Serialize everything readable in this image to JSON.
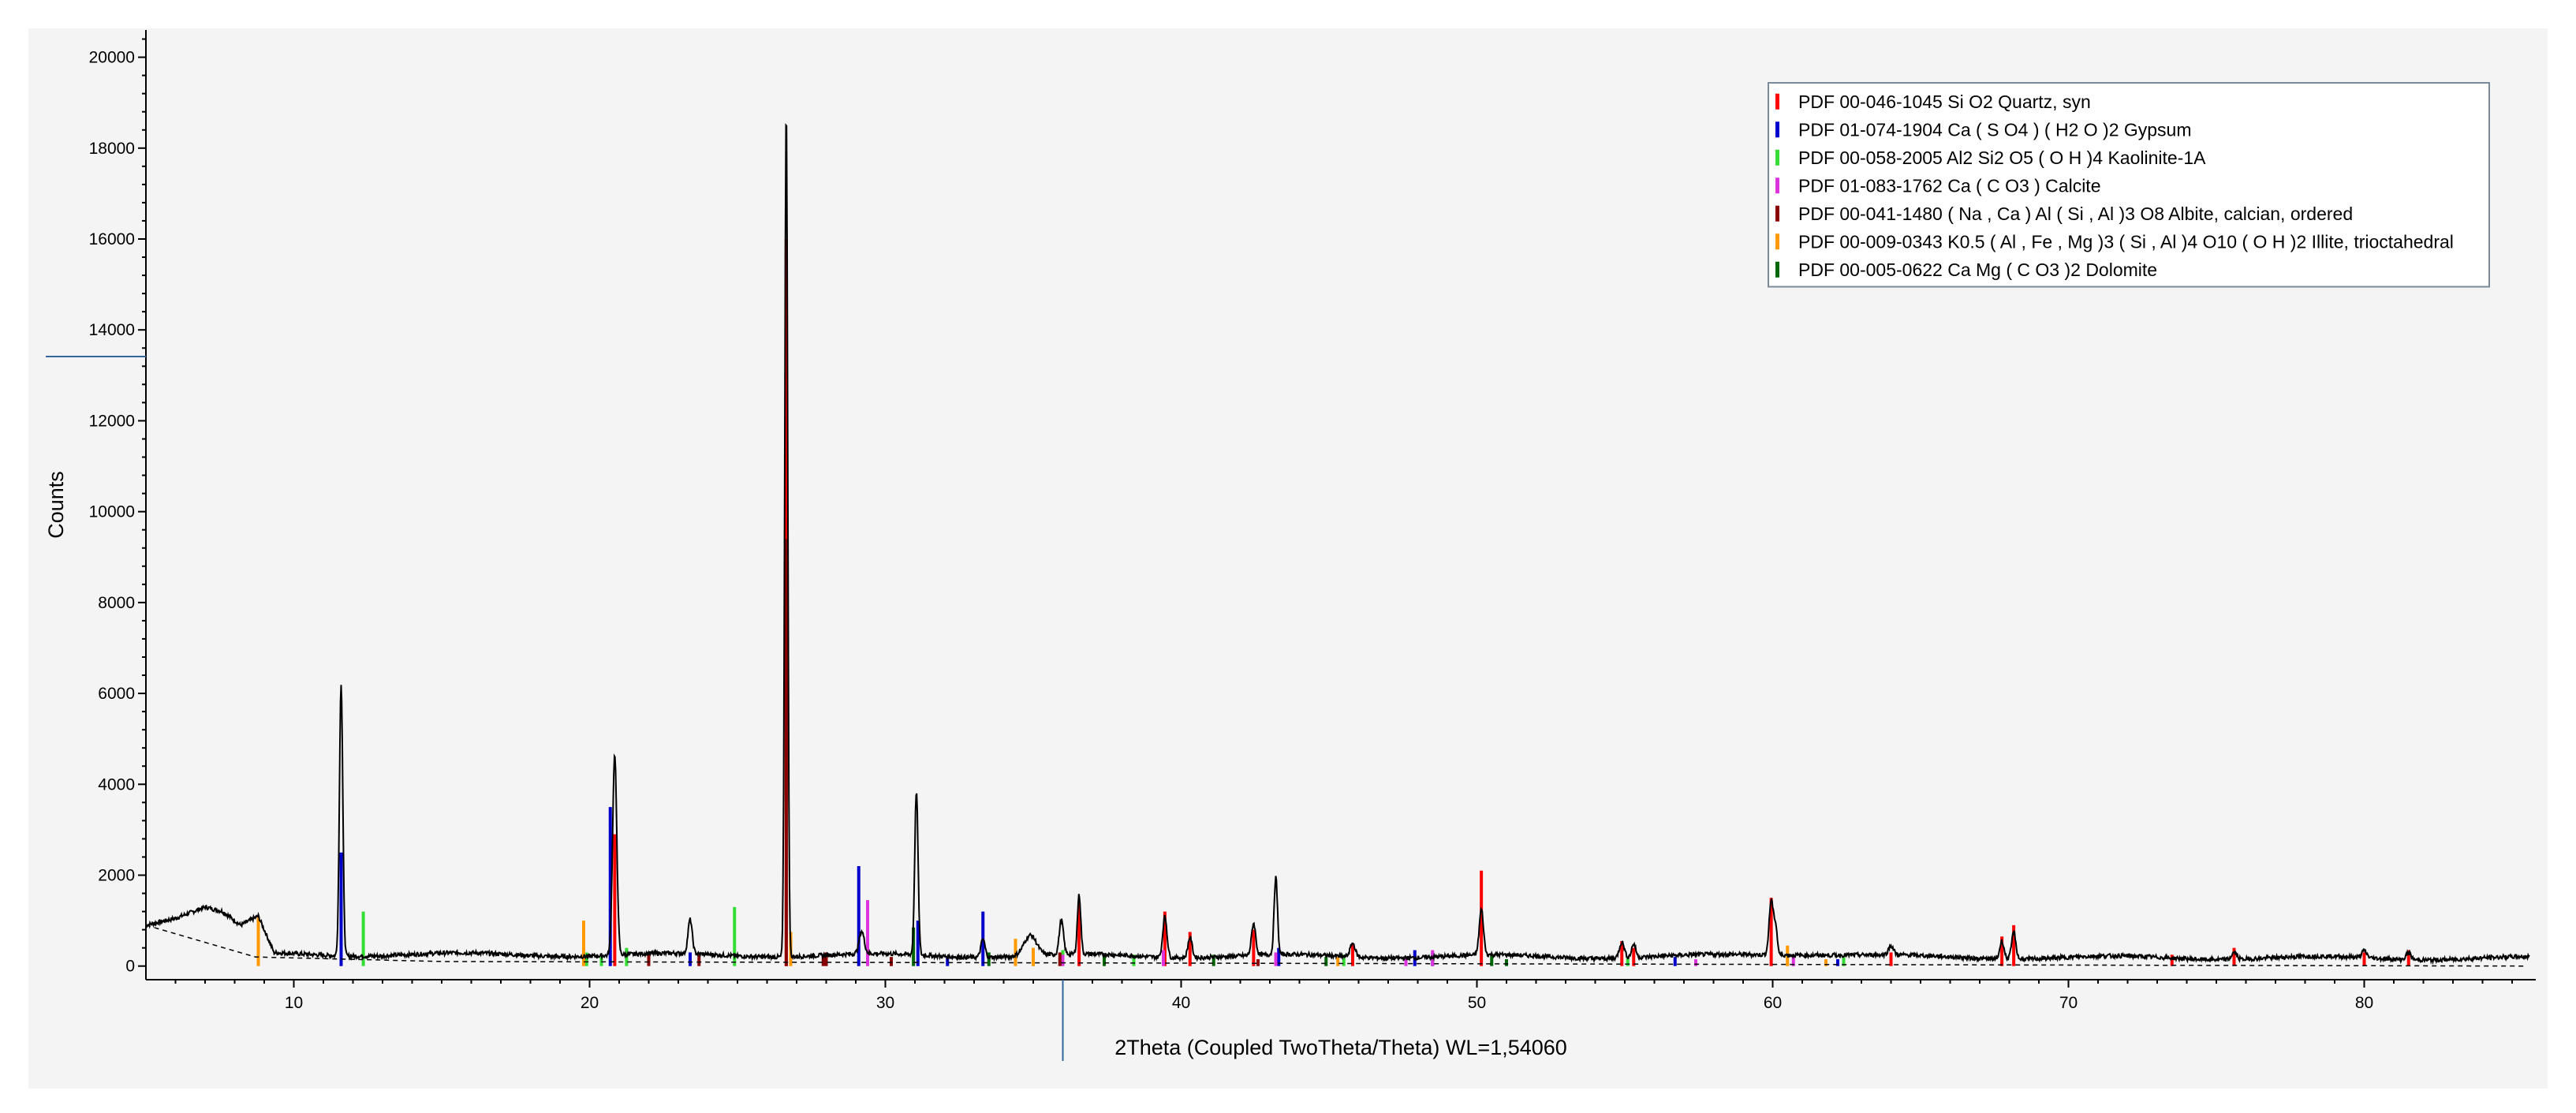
{
  "chart_data": {
    "type": "line",
    "title": "",
    "xlabel": "2Theta (Coupled TwoTheta/Theta) WL=1,54060",
    "ylabel": "Counts",
    "xlim": [
      5,
      85.8
    ],
    "ylim": [
      -300,
      20600
    ],
    "x_ticks": [
      10,
      20,
      30,
      40,
      50,
      60,
      70,
      80
    ],
    "y_ticks": [
      0,
      2000,
      4000,
      6000,
      8000,
      10000,
      12000,
      14000,
      16000,
      18000,
      20000
    ],
    "grid": false,
    "legend_position": "top-right",
    "pattern_color": "#000000",
    "background_line_color": "#000000",
    "pattern_peaks": [
      [
        11.6,
        6000,
        0.08
      ],
      [
        20.85,
        4400,
        0.1
      ],
      [
        23.4,
        750,
        0.1
      ],
      [
        26.65,
        18700,
        0.07
      ],
      [
        29.2,
        500,
        0.12
      ],
      [
        31.05,
        3600,
        0.08
      ],
      [
        33.3,
        400,
        0.1
      ],
      [
        34.9,
        450,
        0.3
      ],
      [
        35.95,
        750,
        0.1
      ],
      [
        36.55,
        1300,
        0.08
      ],
      [
        39.45,
        900,
        0.1
      ],
      [
        40.3,
        450,
        0.1
      ],
      [
        42.45,
        700,
        0.1
      ],
      [
        43.2,
        1700,
        0.08
      ],
      [
        45.8,
        300,
        0.12
      ],
      [
        50.15,
        1000,
        0.1
      ],
      [
        54.9,
        350,
        0.12
      ],
      [
        55.3,
        300,
        0.1
      ],
      [
        59.95,
        1200,
        0.1
      ],
      [
        60.1,
        600,
        0.08
      ],
      [
        64.0,
        200,
        0.12
      ],
      [
        67.75,
        400,
        0.1
      ],
      [
        68.15,
        600,
        0.1
      ],
      [
        75.6,
        150,
        0.12
      ],
      [
        80.0,
        150,
        0.12
      ],
      [
        81.5,
        150,
        0.12
      ]
    ],
    "background_curve": [
      [
        5,
        900
      ],
      [
        8.7,
        200
      ],
      [
        15,
        100
      ],
      [
        85.5,
        0
      ]
    ],
    "hump": [
      [
        5,
        900
      ],
      [
        6,
        1050
      ],
      [
        7,
        1300
      ],
      [
        7.6,
        1200
      ],
      [
        8.2,
        900
      ],
      [
        8.8,
        1100
      ],
      [
        9.3,
        350
      ]
    ],
    "series": [
      {
        "name": "PDF 00-046-1045 Si O2 Quartz, syn",
        "color": "#ff0000",
        "x": [
          20.85,
          26.65,
          36.55,
          39.45,
          40.3,
          42.45,
          45.8,
          50.15,
          54.9,
          55.3,
          59.95,
          64.0,
          67.75,
          68.15,
          73.5,
          75.6,
          80.0,
          81.5
        ],
        "values": [
          2900,
          16000,
          1400,
          1200,
          750,
          800,
          500,
          2100,
          550,
          400,
          1500,
          300,
          650,
          900,
          250,
          400,
          300,
          350
        ]
      },
      {
        "name": "PDF 01-074-1904 Ca ( S O4 ) ( H2 O )2 Gypsum",
        "color": "#0000cc",
        "x": [
          11.6,
          20.7,
          23.4,
          29.1,
          31.1,
          32.1,
          33.3,
          43.3,
          47.9,
          48.5,
          56.7,
          62.2
        ],
        "values": [
          2500,
          3500,
          300,
          2200,
          1000,
          200,
          1200,
          400,
          350,
          300,
          200,
          150
        ]
      },
      {
        "name": "PDF 00-058-2005 Al2 Si2 O5 ( O H )4 Kaolinite-1A",
        "color": "#33dd33",
        "x": [
          12.35,
          19.9,
          20.4,
          21.25,
          24.9,
          35.0,
          36.0,
          38.4,
          45.5,
          55.1,
          62.4
        ],
        "values": [
          1200,
          300,
          250,
          400,
          1300,
          400,
          350,
          250,
          250,
          200,
          200
        ]
      },
      {
        "name": "PDF 01-083-1762 Ca ( C O3 ) Calcite",
        "color": "#dd33dd",
        "x": [
          29.4,
          36.0,
          39.4,
          43.2,
          47.6,
          48.5,
          57.4,
          60.7
        ],
        "values": [
          1450,
          250,
          350,
          300,
          200,
          350,
          150,
          200
        ]
      },
      {
        "name": "PDF 00-041-1480 ( Na , Ca ) Al ( Si , Al )3 O8 Albite, calcian, ordered",
        "color": "#8b0000",
        "x": [
          22.0,
          23.7,
          26.65,
          27.9,
          28.0,
          30.2,
          35.9,
          42.6
        ],
        "values": [
          250,
          300,
          9400,
          250,
          300,
          200,
          300,
          150
        ]
      },
      {
        "name": "PDF 00-009-0343 K0.5 ( Al , Fe , Mg )3 ( Si , Al )4 O10 ( O H )2 Illite, trioctahedral",
        "color": "#ff9900",
        "x": [
          8.8,
          19.8,
          26.8,
          34.4,
          35.0,
          45.3,
          61.8,
          60.5
        ],
        "values": [
          1100,
          1000,
          750,
          600,
          400,
          200,
          150,
          450
        ]
      },
      {
        "name": "PDF 00-005-0622 Ca Mg ( C O3 )2 Dolomite",
        "color": "#006600",
        "x": [
          30.95,
          33.5,
          37.4,
          41.1,
          44.9,
          50.5,
          51.0
        ],
        "values": [
          850,
          300,
          250,
          250,
          200,
          250,
          150
        ]
      }
    ]
  }
}
